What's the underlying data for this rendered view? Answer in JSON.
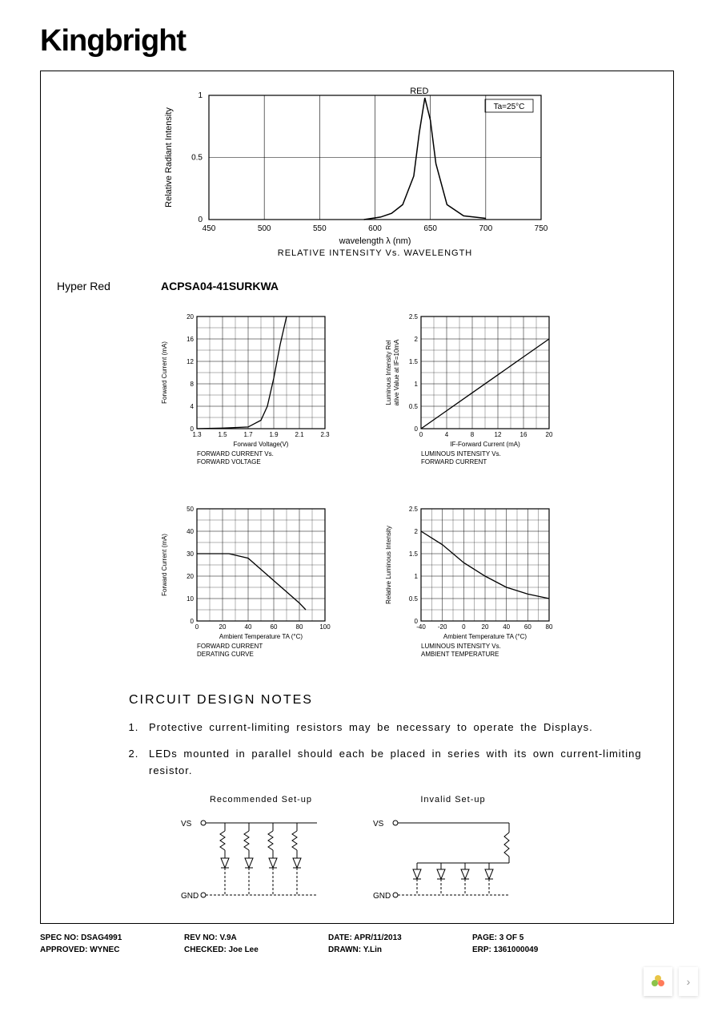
{
  "logo": "Kingbright",
  "main_chart": {
    "type": "line",
    "title_top": "RED",
    "annotation": "Ta=25°C",
    "ylabel": "Relative Radiant Intensity",
    "xlabel": "wavelength λ  (nm)",
    "caption": "RELATIVE INTENSITY Vs. WAVELENGTH",
    "xlim": [
      450,
      750
    ],
    "ylim": [
      0,
      1.0
    ],
    "xticks": [
      450,
      500,
      550,
      600,
      650,
      700,
      750
    ],
    "yticks": [
      0,
      0.5,
      1.0
    ],
    "curve_x": [
      590,
      605,
      615,
      625,
      635,
      640,
      645,
      650,
      655,
      665,
      680,
      700
    ],
    "curve_y": [
      0,
      0.02,
      0.05,
      0.12,
      0.35,
      0.7,
      0.98,
      0.8,
      0.45,
      0.12,
      0.03,
      0.01
    ],
    "line_color": "#000000",
    "grid_color": "#000000",
    "background_color": "#ffffff",
    "label_fontsize": 11,
    "tick_fontsize": 10
  },
  "variant": {
    "label": "Hyper Red",
    "part_number": "ACPSA04-41SURKWA"
  },
  "small_charts": [
    {
      "type": "line",
      "ylabel": "Forward Current (mA)",
      "xlabel": "Forward Voltage(V)",
      "caption": "FORWARD CURRENT Vs. FORWARD VOLTAGE",
      "xlim": [
        1.3,
        2.3
      ],
      "ylim": [
        0,
        20
      ],
      "xticks": [
        1.3,
        1.5,
        1.7,
        1.9,
        2.1,
        2.3
      ],
      "yticks": [
        0,
        4,
        8,
        12,
        16,
        20
      ],
      "curve_x": [
        1.3,
        1.5,
        1.7,
        1.8,
        1.85,
        1.9,
        1.95,
        2.0
      ],
      "curve_y": [
        0,
        0.1,
        0.3,
        1.5,
        4,
        9,
        15,
        20
      ],
      "line_color": "#000000",
      "grid": true
    },
    {
      "type": "line",
      "ylabel": "Luminous Intensity Relative Value at IF=10mA",
      "xlabel": "IF-Forward Current (mA)",
      "caption": "LUMINOUS INTENSITY Vs. FORWARD CURRENT",
      "xlim": [
        0,
        20
      ],
      "ylim": [
        0,
        2.5
      ],
      "xticks": [
        0,
        4,
        8,
        12,
        16,
        20
      ],
      "yticks": [
        0,
        0.5,
        1.0,
        1.5,
        2.0,
        2.5
      ],
      "curve_x": [
        0,
        4,
        8,
        12,
        16,
        20
      ],
      "curve_y": [
        0,
        0.4,
        0.8,
        1.2,
        1.6,
        2.0
      ],
      "line_color": "#000000",
      "grid": true
    },
    {
      "type": "line",
      "ylabel": "Forward Current (mA)",
      "xlabel": "Ambient Temperature TA (°C)",
      "caption": "FORWARD CURRENT DERATING CURVE",
      "xlim": [
        0,
        100
      ],
      "ylim": [
        0,
        50
      ],
      "xticks": [
        0,
        20,
        40,
        60,
        80,
        100
      ],
      "yticks": [
        0,
        10,
        20,
        30,
        40,
        50
      ],
      "curve_x": [
        0,
        25,
        40,
        60,
        80,
        85
      ],
      "curve_y": [
        30,
        30,
        28,
        18,
        8,
        5
      ],
      "line_color": "#000000",
      "grid": true
    },
    {
      "type": "line",
      "ylabel": "Relative Luminous Intensity",
      "xlabel": "Ambient Temperature TA (°C)",
      "caption": "LUMINOUS INTENSITY Vs. AMBIENT TEMPERATURE",
      "xlim": [
        -40,
        80
      ],
      "ylim": [
        0,
        2.5
      ],
      "xticks": [
        -40,
        -20,
        0,
        20,
        40,
        60,
        80
      ],
      "yticks": [
        0,
        0.5,
        1.0,
        1.5,
        2.0,
        2.5
      ],
      "curve_x": [
        -40,
        -20,
        0,
        20,
        40,
        60,
        80
      ],
      "curve_y": [
        2.0,
        1.7,
        1.3,
        1.0,
        0.75,
        0.6,
        0.5
      ],
      "line_color": "#000000",
      "grid": true
    }
  ],
  "notes_title": "CIRCUIT DESIGN NOTES",
  "notes": [
    "Protective current-limiting resistors may be necessary to operate the Displays.",
    "LEDs mounted in parallel should each be placed in series with its own current-limiting resistor."
  ],
  "circuits": {
    "recommended": {
      "title": "Recommended Set-up",
      "vs_label": "VS",
      "gnd_label": "GND"
    },
    "invalid": {
      "title": "Invalid Set-up",
      "vs_label": "VS",
      "gnd_label": "GND"
    }
  },
  "footer": {
    "spec_no": "SPEC NO: DSAG4991",
    "rev_no": "REV NO: V.9A",
    "date": "DATE: APR/11/2013",
    "page": "PAGE: 3 OF 5",
    "approved": "APPROVED: WYNEC",
    "checked": "CHECKED: Joe Lee",
    "drawn": "DRAWN: Y.Lin",
    "erp": "ERP: 1361000049"
  },
  "colors": {
    "text": "#000000",
    "border": "#000000",
    "bg": "#ffffff"
  }
}
